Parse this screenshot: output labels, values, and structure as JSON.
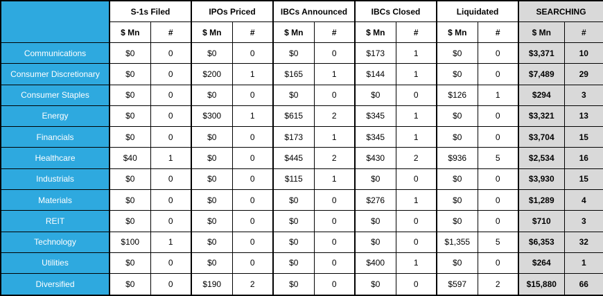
{
  "chart_data": {
    "type": "table",
    "row_header_column": "Sector",
    "column_groups": [
      {
        "id": "s1s-filed",
        "label": "S-1s Filed",
        "highlight": false
      },
      {
        "id": "ipos-priced",
        "label": "IPOs Priced",
        "highlight": false
      },
      {
        "id": "ibcs-announced",
        "label": "IBCs Announced",
        "highlight": false
      },
      {
        "id": "ibcs-closed",
        "label": "IBCs Closed",
        "highlight": false
      },
      {
        "id": "liquidated",
        "label": "Liquidated",
        "highlight": false
      },
      {
        "id": "searching",
        "label": "SEARCHING",
        "highlight": true
      }
    ],
    "subcolumns_per_group": [
      "$ Mn",
      "#"
    ],
    "rows": [
      {
        "sector": "Communications",
        "values": [
          "$0",
          "0",
          "$0",
          "0",
          "$0",
          "0",
          "$173",
          "1",
          "$0",
          "0",
          "$3,371",
          "10"
        ]
      },
      {
        "sector": "Consumer Discretionary",
        "values": [
          "$0",
          "0",
          "$200",
          "1",
          "$165",
          "1",
          "$144",
          "1",
          "$0",
          "0",
          "$7,489",
          "29"
        ]
      },
      {
        "sector": "Consumer Staples",
        "values": [
          "$0",
          "0",
          "$0",
          "0",
          "$0",
          "0",
          "$0",
          "0",
          "$126",
          "1",
          "$294",
          "3"
        ]
      },
      {
        "sector": "Energy",
        "values": [
          "$0",
          "0",
          "$300",
          "1",
          "$615",
          "2",
          "$345",
          "1",
          "$0",
          "0",
          "$3,321",
          "13"
        ]
      },
      {
        "sector": "Financials",
        "values": [
          "$0",
          "0",
          "$0",
          "0",
          "$173",
          "1",
          "$345",
          "1",
          "$0",
          "0",
          "$3,704",
          "15"
        ]
      },
      {
        "sector": "Healthcare",
        "values": [
          "$40",
          "1",
          "$0",
          "0",
          "$445",
          "2",
          "$430",
          "2",
          "$936",
          "5",
          "$2,534",
          "16"
        ]
      },
      {
        "sector": "Industrials",
        "values": [
          "$0",
          "0",
          "$0",
          "0",
          "$115",
          "1",
          "$0",
          "0",
          "$0",
          "0",
          "$3,930",
          "15"
        ]
      },
      {
        "sector": "Materials",
        "values": [
          "$0",
          "0",
          "$0",
          "0",
          "$0",
          "0",
          "$276",
          "1",
          "$0",
          "0",
          "$1,289",
          "4"
        ]
      },
      {
        "sector": "REIT",
        "values": [
          "$0",
          "0",
          "$0",
          "0",
          "$0",
          "0",
          "$0",
          "0",
          "$0",
          "0",
          "$710",
          "3"
        ]
      },
      {
        "sector": "Technology",
        "values": [
          "$100",
          "1",
          "$0",
          "0",
          "$0",
          "0",
          "$0",
          "0",
          "$1,355",
          "5",
          "$6,353",
          "32"
        ]
      },
      {
        "sector": "Utilities",
        "values": [
          "$0",
          "0",
          "$0",
          "0",
          "$0",
          "0",
          "$400",
          "1",
          "$0",
          "0",
          "$264",
          "1"
        ]
      },
      {
        "sector": "Diversified",
        "values": [
          "$0",
          "0",
          "$190",
          "2",
          "$0",
          "0",
          "$0",
          "0",
          "$597",
          "2",
          "$15,880",
          "66"
        ]
      }
    ],
    "colors": {
      "sector_bg": "#2EA9DF",
      "sector_text": "#FFFFFF",
      "header_bg": "#FFFFFF",
      "searching_bg": "#D9D9D9",
      "border": "#000000"
    }
  }
}
